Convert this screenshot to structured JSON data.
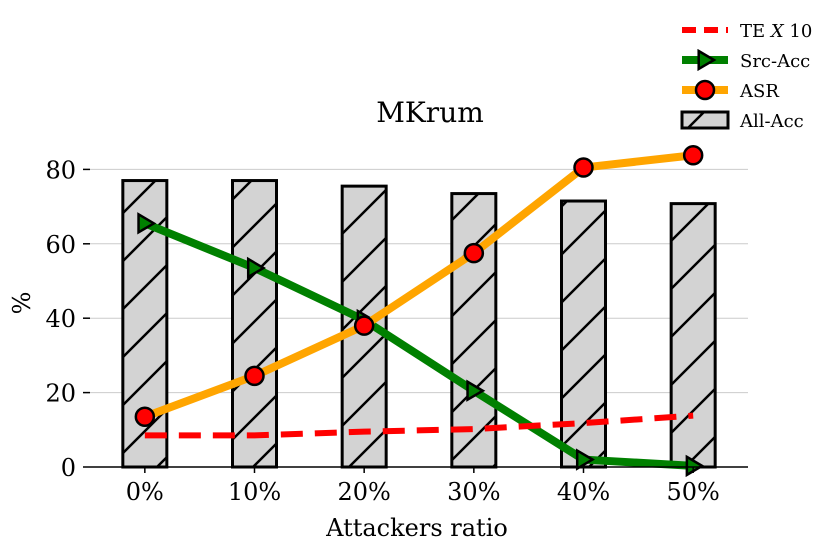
{
  "chart_data": {
    "type": "bar",
    "title": "MKrum",
    "xlabel": "Attackers ratio",
    "ylabel": "%",
    "categories": [
      "0%",
      "10%",
      "20%",
      "30%",
      "40%",
      "50%"
    ],
    "ylim": [
      0,
      90
    ],
    "yticks": [
      0,
      20,
      40,
      60,
      80
    ],
    "grid": true,
    "legend_position": "top-right",
    "series": [
      {
        "name": "All-Acc",
        "kind": "bar",
        "color": "#d3d3d3",
        "hatch": "/",
        "values": [
          77,
          77,
          75.5,
          73.5,
          71.5,
          70.8
        ]
      },
      {
        "name": "ASR",
        "kind": "line",
        "color": "#ffa500",
        "marker": "circle",
        "marker_color": "#ff0000",
        "values": [
          13.5,
          24.5,
          38,
          57.5,
          80.5,
          83.8
        ]
      },
      {
        "name": "Src-Acc",
        "kind": "line",
        "color": "#008000",
        "marker": "triangle-right",
        "values": [
          65.5,
          53.5,
          39.5,
          20.5,
          2,
          0.3
        ]
      },
      {
        "name": "TE X 10",
        "kind": "line",
        "style": "dashed",
        "color": "#ff0000",
        "values": [
          8.5,
          8.5,
          9.5,
          10.2,
          11.8,
          13.8
        ]
      }
    ],
    "legend": [
      {
        "label": "TE ",
        "italic": "X",
        "rest": " 10",
        "series": "TE X 10"
      },
      {
        "label": "Src-Acc",
        "series": "Src-Acc"
      },
      {
        "label": "ASR",
        "series": "ASR"
      },
      {
        "label": "All-Acc",
        "series": "All-Acc"
      }
    ]
  }
}
